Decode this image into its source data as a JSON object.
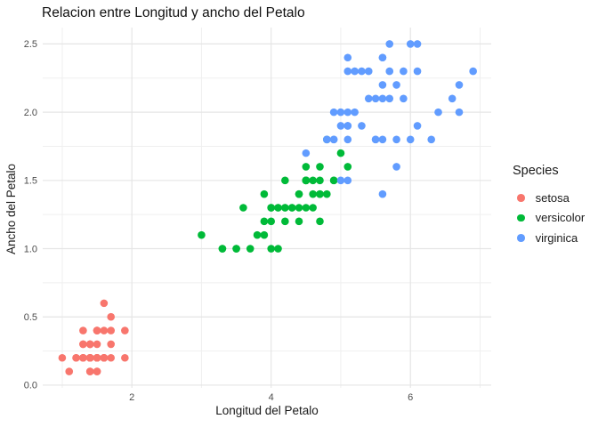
{
  "chart_data": {
    "type": "scatter",
    "title": "Relacion entre Longitud y ancho del Petalo",
    "xlabel": "Longitud del Petalo",
    "ylabel": "Ancho del Petalo",
    "xlim": [
      0.72,
      7.16
    ],
    "ylim": [
      -0.02,
      2.62
    ],
    "x_ticks": [
      {
        "value": 2,
        "label": "2"
      },
      {
        "value": 4,
        "label": "4"
      },
      {
        "value": 6,
        "label": "6"
      }
    ],
    "y_ticks": [
      {
        "value": 0.0,
        "label": "0.0"
      },
      {
        "value": 0.5,
        "label": "0.5"
      },
      {
        "value": 1.0,
        "label": "1.0"
      },
      {
        "value": 1.5,
        "label": "1.5"
      },
      {
        "value": 2.0,
        "label": "2.0"
      },
      {
        "value": 2.5,
        "label": "2.5"
      }
    ],
    "x_minor_ticks": [
      1,
      3,
      5,
      7
    ],
    "y_minor_ticks": [
      0.25,
      0.75,
      1.25,
      1.75,
      2.25
    ],
    "grid": {
      "major_color": "#e5e5e5",
      "minor_color": "#efefef",
      "background": "#ffffff"
    },
    "legend": {
      "title": "Species",
      "position": "right",
      "entries": [
        {
          "label": "setosa",
          "color": "#F8766D"
        },
        {
          "label": "versicolor",
          "color": "#00BA38"
        },
        {
          "label": "virginica",
          "color": "#619CFF"
        }
      ]
    },
    "series": [
      {
        "name": "setosa",
        "color": "#F8766D",
        "points": [
          [
            1.4,
            0.2
          ],
          [
            1.4,
            0.2
          ],
          [
            1.3,
            0.2
          ],
          [
            1.5,
            0.2
          ],
          [
            1.4,
            0.2
          ],
          [
            1.7,
            0.4
          ],
          [
            1.4,
            0.3
          ],
          [
            1.5,
            0.2
          ],
          [
            1.4,
            0.2
          ],
          [
            1.5,
            0.1
          ],
          [
            1.5,
            0.2
          ],
          [
            1.6,
            0.2
          ],
          [
            1.4,
            0.1
          ],
          [
            1.1,
            0.1
          ],
          [
            1.2,
            0.2
          ],
          [
            1.5,
            0.4
          ],
          [
            1.3,
            0.4
          ],
          [
            1.4,
            0.3
          ],
          [
            1.7,
            0.3
          ],
          [
            1.5,
            0.3
          ],
          [
            1.7,
            0.2
          ],
          [
            1.5,
            0.4
          ],
          [
            1.0,
            0.2
          ],
          [
            1.7,
            0.5
          ],
          [
            1.9,
            0.2
          ],
          [
            1.6,
            0.2
          ],
          [
            1.6,
            0.4
          ],
          [
            1.5,
            0.2
          ],
          [
            1.4,
            0.2
          ],
          [
            1.6,
            0.2
          ],
          [
            1.6,
            0.2
          ],
          [
            1.5,
            0.4
          ],
          [
            1.5,
            0.1
          ],
          [
            1.4,
            0.2
          ],
          [
            1.5,
            0.2
          ],
          [
            1.2,
            0.2
          ],
          [
            1.3,
            0.2
          ],
          [
            1.4,
            0.1
          ],
          [
            1.3,
            0.2
          ],
          [
            1.5,
            0.2
          ],
          [
            1.3,
            0.3
          ],
          [
            1.3,
            0.3
          ],
          [
            1.3,
            0.2
          ],
          [
            1.6,
            0.6
          ],
          [
            1.9,
            0.4
          ],
          [
            1.4,
            0.3
          ],
          [
            1.6,
            0.2
          ],
          [
            1.4,
            0.2
          ],
          [
            1.5,
            0.2
          ],
          [
            1.4,
            0.2
          ]
        ]
      },
      {
        "name": "versicolor",
        "color": "#00BA38",
        "points": [
          [
            4.7,
            1.4
          ],
          [
            4.5,
            1.5
          ],
          [
            4.9,
            1.5
          ],
          [
            4.0,
            1.3
          ],
          [
            4.6,
            1.5
          ],
          [
            4.5,
            1.3
          ],
          [
            4.7,
            1.6
          ],
          [
            3.3,
            1.0
          ],
          [
            4.6,
            1.3
          ],
          [
            3.9,
            1.4
          ],
          [
            3.5,
            1.0
          ],
          [
            4.2,
            1.5
          ],
          [
            4.0,
            1.0
          ],
          [
            4.7,
            1.4
          ],
          [
            3.6,
            1.3
          ],
          [
            4.4,
            1.4
          ],
          [
            4.5,
            1.5
          ],
          [
            4.1,
            1.0
          ],
          [
            4.5,
            1.5
          ],
          [
            3.9,
            1.1
          ],
          [
            4.8,
            1.8
          ],
          [
            4.0,
            1.3
          ],
          [
            4.9,
            1.5
          ],
          [
            4.7,
            1.2
          ],
          [
            4.3,
            1.3
          ],
          [
            4.4,
            1.4
          ],
          [
            4.8,
            1.4
          ],
          [
            5.0,
            1.7
          ],
          [
            4.5,
            1.5
          ],
          [
            3.5,
            1.0
          ],
          [
            3.8,
            1.1
          ],
          [
            3.7,
            1.0
          ],
          [
            3.9,
            1.2
          ],
          [
            5.1,
            1.6
          ],
          [
            4.5,
            1.5
          ],
          [
            4.5,
            1.6
          ],
          [
            4.7,
            1.5
          ],
          [
            4.4,
            1.3
          ],
          [
            4.1,
            1.3
          ],
          [
            4.0,
            1.3
          ],
          [
            4.4,
            1.2
          ],
          [
            4.6,
            1.4
          ],
          [
            4.0,
            1.2
          ],
          [
            3.3,
            1.0
          ],
          [
            4.2,
            1.3
          ],
          [
            4.2,
            1.2
          ],
          [
            4.2,
            1.3
          ],
          [
            4.3,
            1.3
          ],
          [
            3.0,
            1.1
          ],
          [
            4.1,
            1.3
          ]
        ]
      },
      {
        "name": "virginica",
        "color": "#619CFF",
        "points": [
          [
            6.0,
            2.5
          ],
          [
            5.1,
            1.9
          ],
          [
            5.9,
            2.1
          ],
          [
            5.6,
            1.8
          ],
          [
            5.8,
            2.2
          ],
          [
            6.6,
            2.1
          ],
          [
            4.5,
            1.7
          ],
          [
            6.3,
            1.8
          ],
          [
            5.8,
            1.8
          ],
          [
            6.1,
            2.5
          ],
          [
            5.1,
            2.0
          ],
          [
            5.3,
            1.9
          ],
          [
            5.5,
            2.1
          ],
          [
            5.0,
            2.0
          ],
          [
            5.1,
            2.4
          ],
          [
            5.3,
            2.3
          ],
          [
            5.5,
            1.8
          ],
          [
            6.7,
            2.2
          ],
          [
            6.9,
            2.3
          ],
          [
            5.0,
            1.5
          ],
          [
            5.7,
            2.3
          ],
          [
            4.9,
            2.0
          ],
          [
            6.7,
            2.0
          ],
          [
            4.9,
            1.8
          ],
          [
            5.7,
            2.1
          ],
          [
            6.0,
            1.8
          ],
          [
            4.8,
            1.8
          ],
          [
            4.9,
            1.8
          ],
          [
            5.6,
            2.1
          ],
          [
            5.8,
            1.6
          ],
          [
            6.1,
            1.9
          ],
          [
            6.4,
            2.0
          ],
          [
            5.6,
            2.2
          ],
          [
            5.1,
            1.5
          ],
          [
            5.6,
            1.4
          ],
          [
            6.1,
            2.3
          ],
          [
            5.6,
            2.4
          ],
          [
            5.5,
            1.8
          ],
          [
            4.8,
            1.8
          ],
          [
            5.4,
            2.1
          ],
          [
            5.6,
            2.4
          ],
          [
            5.1,
            2.3
          ],
          [
            5.1,
            1.9
          ],
          [
            5.9,
            2.3
          ],
          [
            5.7,
            2.5
          ],
          [
            5.2,
            2.3
          ],
          [
            5.0,
            1.9
          ],
          [
            5.2,
            2.0
          ],
          [
            5.4,
            2.3
          ],
          [
            5.1,
            1.8
          ]
        ]
      }
    ]
  }
}
